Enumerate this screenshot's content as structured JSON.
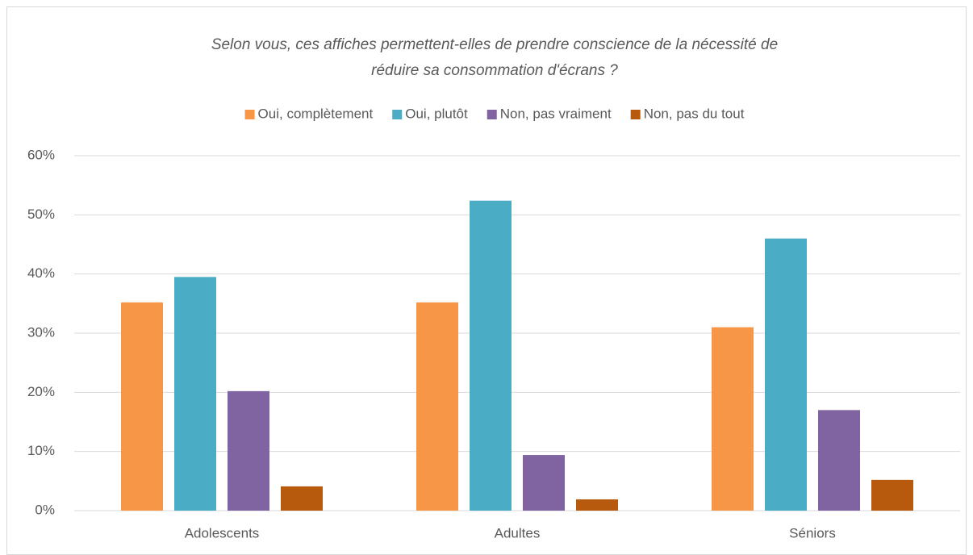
{
  "chart_data": {
    "type": "bar",
    "title": [
      "Selon vous, ces affiches permettent-elles de prendre conscience de la nécessité de",
      "réduire sa consommation d'écrans ?"
    ],
    "categories": [
      "Adolescents",
      "Adultes",
      "Séniors"
    ],
    "series": [
      {
        "name": "Oui, complètement",
        "color": "#f79646",
        "values": [
          35.2,
          35.2,
          31.0
        ]
      },
      {
        "name": "Oui, plutôt",
        "color": "#4bacc6",
        "values": [
          39.5,
          52.4,
          46.0
        ]
      },
      {
        "name": "Non, pas vraiment",
        "color": "#8064a2",
        "values": [
          20.2,
          9.4,
          17.0
        ]
      },
      {
        "name": "Non, pas du tout",
        "color": "#b85a0d",
        "values": [
          4.1,
          1.9,
          5.2
        ]
      }
    ],
    "ylim": [
      0,
      60
    ],
    "yticks": [
      {
        "value": 0,
        "label": "0%"
      },
      {
        "value": 10,
        "label": "10%"
      },
      {
        "value": 20,
        "label": "20%"
      },
      {
        "value": 30,
        "label": "30%"
      },
      {
        "value": 40,
        "label": "40%"
      },
      {
        "value": 50,
        "label": "50%"
      },
      {
        "value": 60,
        "label": "60%"
      }
    ],
    "grid": true,
    "legend": "top"
  }
}
